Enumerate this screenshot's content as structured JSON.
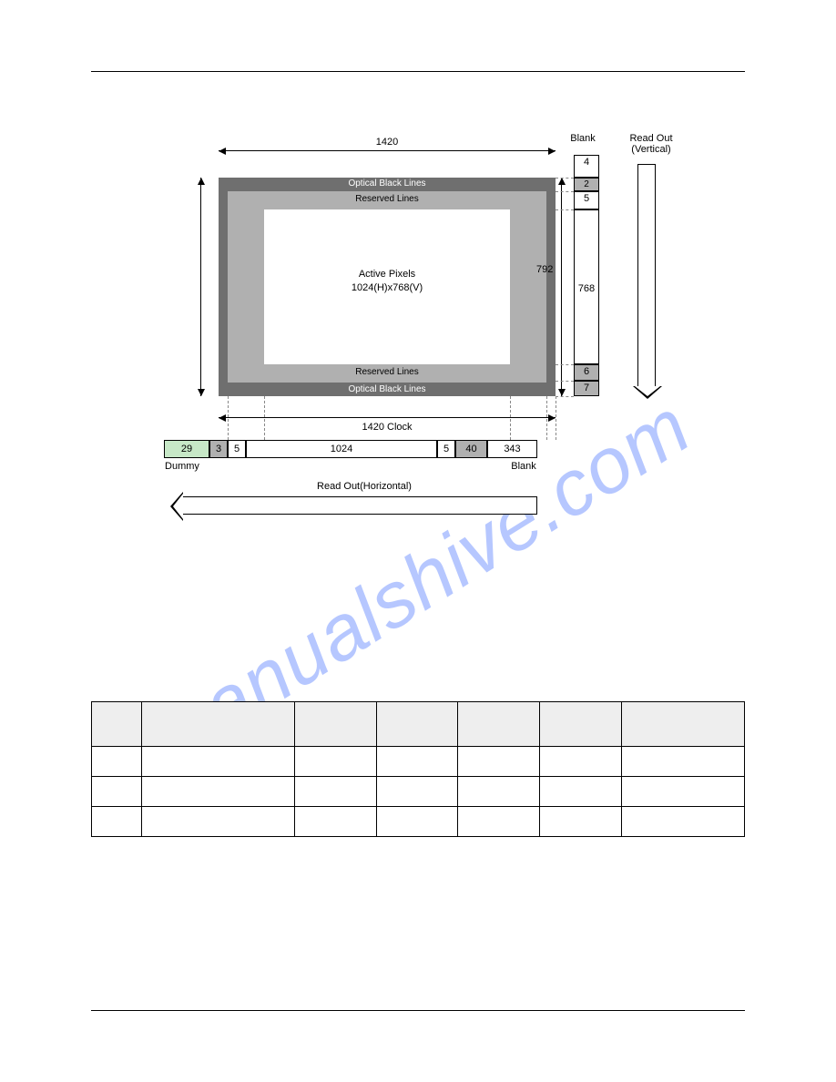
{
  "watermark": "manualshive.com",
  "diagram": {
    "top_width": "1420",
    "blank_lbl": "Blank",
    "readout_v": "Read Out\n(Vertical)",
    "readout_h": "Read Out(Horizontal)",
    "opt_black_top": "Optical Black Lines",
    "reserved_top": "Reserved Lines",
    "active_l1": "Active Pixels",
    "active_l2": "1024(H)x768(V)",
    "reserved_bot": "Reserved Lines",
    "opt_black_bot": "Optical Black Lines",
    "vseg_4": "4",
    "vseg_2": "2",
    "vseg_5": "5",
    "vseg_768": "768",
    "vseg_6": "6",
    "vseg_7": "7",
    "v_total": "792",
    "h_clock": "1420 Clock",
    "hseg_29": "29",
    "hseg_3": "3",
    "hseg_5l": "5",
    "hseg_1024": "1024",
    "hseg_5r": "5",
    "hseg_40": "40",
    "hseg_343": "343",
    "dummy_lbl": "Dummy",
    "blank_h_lbl": "Blank",
    "colors": {
      "outer": "#6f6f6f",
      "mid": "#b0b0b0",
      "inner": "#ffffff",
      "green": "#c7e8c7",
      "gray": "#b0b0b0",
      "table_head_bg": "#eeeeee",
      "watermark": "#4a76ff"
    }
  },
  "table": {
    "columns": [
      "",
      "",
      "",
      "",
      "",
      "",
      ""
    ],
    "col_widths_class": [
      "c0",
      "c1",
      "cN",
      "cN",
      "cN",
      "cN",
      "cL"
    ],
    "rows": [
      [
        "",
        "",
        "",
        "",
        "",
        "",
        ""
      ],
      [
        "",
        "",
        "",
        "",
        "",
        "",
        ""
      ],
      [
        "",
        "",
        "",
        "",
        "",
        "",
        ""
      ]
    ],
    "header_bg": "#eeeeee"
  }
}
